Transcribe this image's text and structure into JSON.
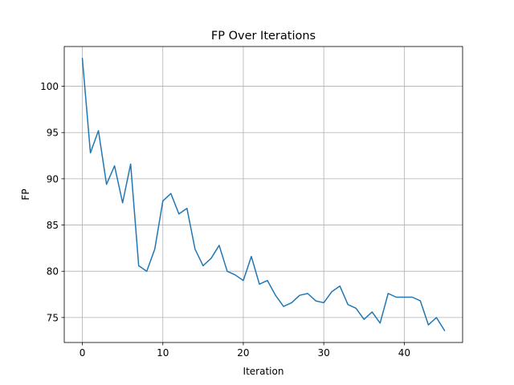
{
  "chart_data": {
    "type": "line",
    "title": "FP Over Iterations",
    "xlabel": "Iteration",
    "ylabel": "FP",
    "xlim": [
      -2.25,
      47.25
    ],
    "ylim": [
      72.3,
      104.3
    ],
    "xticks": [
      0,
      10,
      20,
      30,
      40
    ],
    "yticks": [
      75,
      80,
      85,
      90,
      95,
      100
    ],
    "grid": true,
    "series": [
      {
        "color": "#1f77b4",
        "x": [
          0,
          1,
          2,
          3,
          4,
          5,
          6,
          7,
          8,
          9,
          10,
          11,
          12,
          13,
          14,
          15,
          16,
          17,
          18,
          19,
          20,
          21,
          22,
          23,
          24,
          25,
          26,
          27,
          28,
          29,
          30,
          31,
          32,
          33,
          34,
          35,
          36,
          37,
          38,
          39,
          40,
          41,
          42,
          43,
          44,
          45
        ],
        "y": [
          103.0,
          92.8,
          95.2,
          89.4,
          91.4,
          87.4,
          91.6,
          80.6,
          80.0,
          82.4,
          87.6,
          88.4,
          86.2,
          86.8,
          82.4,
          80.6,
          81.4,
          82.8,
          80.0,
          79.6,
          79.0,
          81.6,
          78.6,
          79.0,
          77.4,
          76.2,
          76.6,
          77.4,
          77.6,
          76.8,
          76.6,
          77.8,
          78.4,
          76.4,
          76.0,
          74.8,
          75.6,
          74.4,
          77.6,
          77.2,
          77.2,
          77.2,
          76.8,
          74.2,
          75.0,
          73.6
        ]
      }
    ]
  }
}
